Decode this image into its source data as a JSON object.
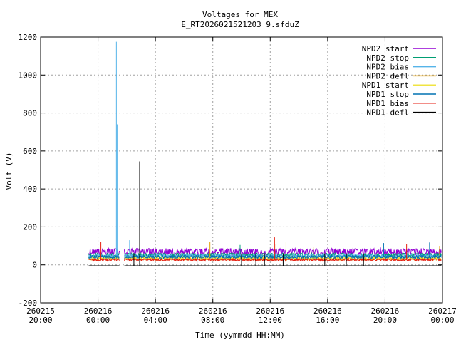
{
  "chart_data": {
    "type": "line",
    "title": "Voltages for MEX",
    "subtitle": "E_RT2026021521203 9.sfduZ",
    "xlabel": "Time (yymmdd HH:MM)",
    "ylabel": "Volt (V)",
    "xlim_hours": [
      -4,
      24
    ],
    "ylim": [
      -200,
      1200
    ],
    "grid": true,
    "legend_position": "top-right",
    "x_ticks": [
      {
        "date": "260215",
        "time": "20:00",
        "hours": -4
      },
      {
        "date": "260216",
        "time": "00:00",
        "hours": 0
      },
      {
        "date": "260216",
        "time": "04:00",
        "hours": 4
      },
      {
        "date": "260216",
        "time": "08:00",
        "hours": 8
      },
      {
        "date": "260216",
        "time": "12:00",
        "hours": 12
      },
      {
        "date": "260216",
        "time": "16:00",
        "hours": 16
      },
      {
        "date": "260216",
        "time": "20:00",
        "hours": 20
      },
      {
        "date": "260217",
        "time": "00:00",
        "hours": 24
      }
    ],
    "y_ticks": [
      -200,
      0,
      200,
      400,
      600,
      800,
      1000,
      1200
    ],
    "series": [
      {
        "name": "NPD2 start",
        "color": "#9400d3",
        "base": 65,
        "amp": 22,
        "density": 3,
        "spikes": []
      },
      {
        "name": "NPD2 stop",
        "color": "#009e73",
        "base": 50,
        "amp": 12,
        "density": 2,
        "spikes": [
          {
            "x": 9.9,
            "y": 105
          }
        ]
      },
      {
        "name": "NPD2 bias",
        "color": "#56b4e9",
        "base": 45,
        "amp": 10,
        "density": 2,
        "spikes": [
          {
            "x": 1.28,
            "y": 1175
          },
          {
            "x": 1.33,
            "y": 740
          },
          {
            "x": 2.2,
            "y": 130
          }
        ]
      },
      {
        "name": "NPD2 defl",
        "color": "#e69f00",
        "base": 30,
        "amp": 8,
        "density": 1,
        "spikes": [
          {
            "x": 7.8,
            "y": 120
          },
          {
            "x": 12.4,
            "y": 110
          },
          {
            "x": 23.8,
            "y": 100
          }
        ]
      },
      {
        "name": "NPD1 start",
        "color": "#f0e442",
        "base": 35,
        "amp": 8,
        "density": 1,
        "spikes": [
          {
            "x": 13.1,
            "y": 120
          },
          {
            "x": 15.0,
            "y": 95
          }
        ]
      },
      {
        "name": "NPD1 stop",
        "color": "#0072b2",
        "base": 40,
        "amp": 10,
        "density": 1,
        "spikes": [
          {
            "x": 19.9,
            "y": 115
          },
          {
            "x": 23.1,
            "y": 118
          }
        ]
      },
      {
        "name": "NPD1 bias",
        "color": "#e51e10",
        "base": 25,
        "amp": 6,
        "density": 1,
        "spikes": [
          {
            "x": 0.2,
            "y": 120
          },
          {
            "x": 12.3,
            "y": 145
          },
          {
            "x": 21.5,
            "y": 110
          }
        ]
      },
      {
        "name": "NPD1 defl",
        "color": "#000000",
        "base": -5,
        "amp": 0,
        "density": 0,
        "spikes": [
          {
            "x": 2.9,
            "y": 545
          },
          {
            "x": 2.5,
            "y": 60
          },
          {
            "x": 6.9,
            "y": 60
          },
          {
            "x": 10.0,
            "y": 60
          },
          {
            "x": 11.0,
            "y": 60
          },
          {
            "x": 11.6,
            "y": 60
          },
          {
            "x": 12.9,
            "y": 60
          },
          {
            "x": 15.8,
            "y": 60
          },
          {
            "x": 17.3,
            "y": 60
          },
          {
            "x": 18.5,
            "y": 60
          }
        ]
      }
    ],
    "data_span_hours": [
      -0.65,
      23.95
    ],
    "data_gap_hours": [
      1.5,
      1.8
    ]
  }
}
